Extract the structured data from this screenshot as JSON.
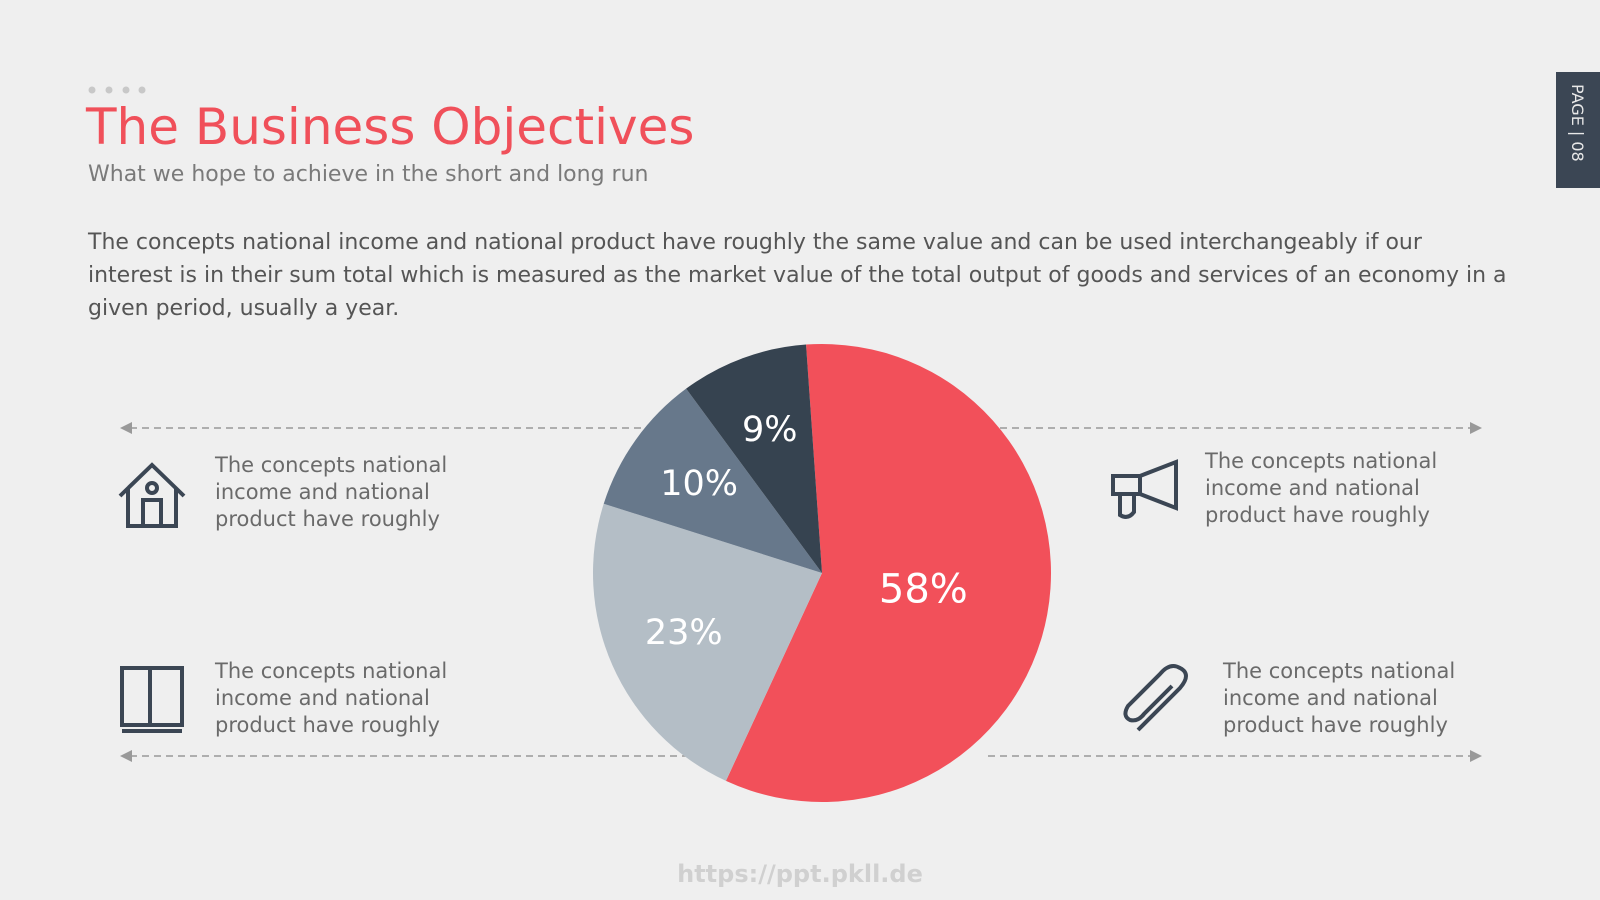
{
  "header": {
    "title": "The Business Objectives",
    "subtitle": "What we hope to achieve in the short and long run"
  },
  "paragraph": "The concepts national income and national product have roughly the same value and can be used interchangeably if our interest is in their sum total which is measured as the market value of the total output of goods and services of an economy in a given period, usually a year.",
  "items": [
    {
      "text": "The concepts national income and national product have roughly"
    },
    {
      "text": "The concepts national income and national product have roughly"
    },
    {
      "text": "The concepts national income and national product have roughly"
    },
    {
      "text": "The concepts national income and national product have roughly"
    }
  ],
  "page_label": "PAGE | 08",
  "watermark": "https://ppt.pkll.de",
  "chart_data": {
    "type": "pie",
    "values": [
      58,
      23,
      10,
      9
    ],
    "value_labels": [
      "58%",
      "23%",
      "10%",
      "9%"
    ],
    "colors": [
      "#f2505a",
      "#b4bec6",
      "#67788b",
      "#364350"
    ]
  }
}
